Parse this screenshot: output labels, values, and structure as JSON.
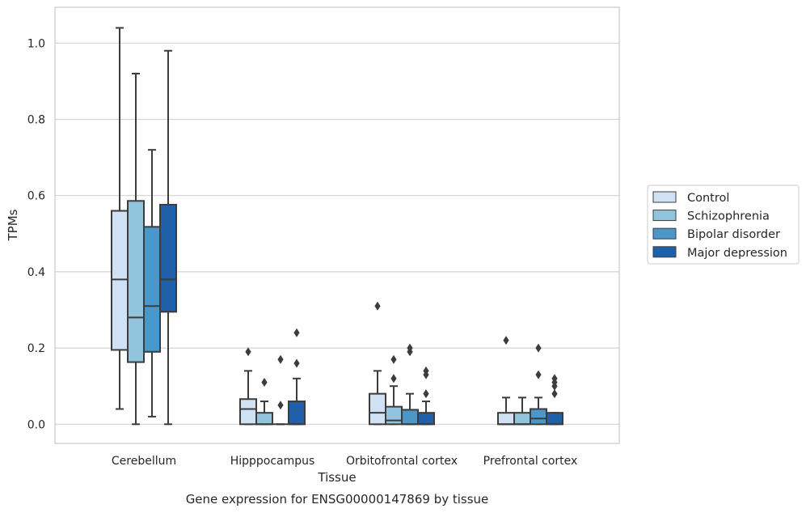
{
  "chart_data": {
    "type": "box",
    "xlabel": "Tissue",
    "ylabel": "TPMs",
    "caption": "Gene expression for ENSG00000147869 by tissue",
    "ylim": [
      -0.05,
      1.09
    ],
    "yticks": [
      0.0,
      0.2,
      0.4,
      0.6,
      0.8,
      1.0
    ],
    "ytick_labels": [
      "0.0",
      "0.2",
      "0.4",
      "0.6",
      "0.8",
      "1.0"
    ],
    "grid": "horizontal",
    "legend_position": "right",
    "categories": [
      "Cerebellum",
      "Hipppocampus",
      "Orbitofrontal cortex",
      "Prefrontal cortex"
    ],
    "series": [
      {
        "name": "Control",
        "color": "#cfe1f2",
        "boxes": [
          {
            "whislo": 0.04,
            "q1": 0.195,
            "med": 0.38,
            "q3": 0.56,
            "whishi": 1.04,
            "fliers": []
          },
          {
            "whislo": 0.0,
            "q1": 0.0,
            "med": 0.04,
            "q3": 0.066,
            "whishi": 0.14,
            "fliers": [
              0.19
            ]
          },
          {
            "whislo": 0.0,
            "q1": 0.0,
            "med": 0.03,
            "q3": 0.08,
            "whishi": 0.14,
            "fliers": [
              0.31
            ]
          },
          {
            "whislo": 0.0,
            "q1": 0.0,
            "med": 0.0,
            "q3": 0.03,
            "whishi": 0.07,
            "fliers": [
              0.22
            ]
          }
        ]
      },
      {
        "name": "Schizophrenia",
        "color": "#93c4de",
        "boxes": [
          {
            "whislo": 0.0,
            "q1": 0.163,
            "med": 0.28,
            "q3": 0.586,
            "whishi": 0.92,
            "fliers": []
          },
          {
            "whislo": 0.0,
            "q1": 0.0,
            "med": 0.0,
            "q3": 0.03,
            "whishi": 0.06,
            "fliers": [
              0.11
            ]
          },
          {
            "whislo": 0.0,
            "q1": 0.0,
            "med": 0.01,
            "q3": 0.046,
            "whishi": 0.1,
            "fliers": [
              0.12,
              0.17
            ]
          },
          {
            "whislo": 0.0,
            "q1": 0.0,
            "med": 0.0,
            "q3": 0.03,
            "whishi": 0.07,
            "fliers": []
          }
        ]
      },
      {
        "name": "Bipolar disorder",
        "color": "#4a98c9",
        "boxes": [
          {
            "whislo": 0.02,
            "q1": 0.19,
            "med": 0.31,
            "q3": 0.518,
            "whishi": 0.72,
            "fliers": []
          },
          {
            "whislo": 0.0,
            "q1": 0.0,
            "med": 0.0,
            "q3": 0.0,
            "whishi": 0.0,
            "fliers": [
              0.05,
              0.17
            ]
          },
          {
            "whislo": 0.0,
            "q1": 0.0,
            "med": 0.0,
            "q3": 0.038,
            "whishi": 0.08,
            "fliers": [
              0.19,
              0.2
            ]
          },
          {
            "whislo": 0.0,
            "q1": 0.0,
            "med": 0.015,
            "q3": 0.04,
            "whishi": 0.07,
            "fliers": [
              0.13,
              0.2
            ]
          }
        ]
      },
      {
        "name": "Major depression",
        "color": "#2060a8",
        "boxes": [
          {
            "whislo": 0.0,
            "q1": 0.295,
            "med": 0.38,
            "q3": 0.576,
            "whishi": 0.98,
            "fliers": []
          },
          {
            "whislo": 0.0,
            "q1": 0.0,
            "med": 0.0,
            "q3": 0.06,
            "whishi": 0.12,
            "fliers": [
              0.16,
              0.24
            ]
          },
          {
            "whislo": 0.0,
            "q1": 0.0,
            "med": 0.0,
            "q3": 0.03,
            "whishi": 0.06,
            "fliers": [
              0.08,
              0.13,
              0.14
            ]
          },
          {
            "whislo": 0.0,
            "q1": 0.0,
            "med": 0.0,
            "q3": 0.03,
            "whishi": 0.03,
            "fliers": [
              0.08,
              0.1,
              0.11,
              0.12
            ]
          }
        ]
      }
    ]
  }
}
